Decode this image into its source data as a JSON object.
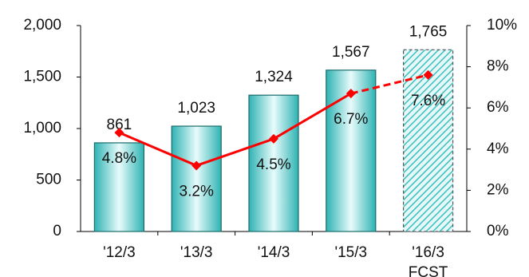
{
  "chart_data": {
    "type": "bar-line",
    "categories": [
      "'12/3",
      "'13/3",
      "'14/3",
      "'15/3",
      "'16/3"
    ],
    "category_note": "FCST",
    "forecast": [
      false,
      false,
      false,
      false,
      true
    ],
    "series": [
      {
        "name": "bar",
        "type": "bar",
        "color": "#3cbfbf",
        "values": [
          861,
          1023,
          1324,
          1567,
          1765
        ],
        "value_labels": [
          "861",
          "1,023",
          "1,324",
          "1,567",
          "1,765"
        ]
      },
      {
        "name": "line",
        "type": "line",
        "axis": "y2",
        "color": "#ff0000",
        "values": [
          4.8,
          3.2,
          4.5,
          6.7,
          7.6
        ],
        "value_labels": [
          "4.8%",
          "3.2%",
          "4.5%",
          "6.7%",
          "7.6%"
        ]
      }
    ],
    "ylim": [
      0,
      2000
    ],
    "yticks": [
      0,
      500,
      {
        "value": 1000,
        "label": "1,000"
      },
      {
        "value": 1500,
        "label": "1,500"
      },
      {
        "value": 2000,
        "label": "2,000"
      }
    ],
    "y2lim": [
      0,
      10
    ],
    "y2ticks": [
      {
        "value": 0,
        "label": "0%"
      },
      {
        "value": 2,
        "label": "2%"
      },
      {
        "value": 4,
        "label": "4%"
      },
      {
        "value": 6,
        "label": "6%"
      },
      {
        "value": 8,
        "label": "8%"
      },
      {
        "value": 10,
        "label": "10%"
      }
    ]
  }
}
